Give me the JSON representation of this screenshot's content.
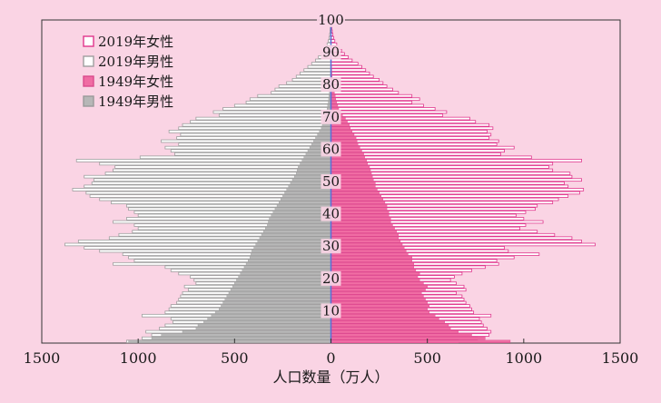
{
  "chart_data": {
    "type": "bar",
    "orientation": "horizontal",
    "layout": "population-pyramid",
    "xlabel": "人口数量（万人）",
    "x_ticks": [
      "1500",
      "1000",
      "500",
      "0",
      "500",
      "1000",
      "1500"
    ],
    "x_tick_values": [
      -1500,
      -1000,
      -500,
      0,
      500,
      1000,
      1500
    ],
    "xlim": [
      -1500,
      1500
    ],
    "ylim": [
      0,
      100
    ],
    "y_ticks": [
      10,
      20,
      30,
      40,
      50,
      60,
      70,
      80,
      90,
      100
    ],
    "grid": false,
    "legend_position": "top-left",
    "ages": [
      0,
      1,
      2,
      3,
      4,
      5,
      6,
      7,
      8,
      9,
      10,
      11,
      12,
      13,
      14,
      15,
      16,
      17,
      18,
      19,
      20,
      21,
      22,
      23,
      24,
      25,
      26,
      27,
      28,
      29,
      30,
      31,
      32,
      33,
      34,
      35,
      36,
      37,
      38,
      39,
      40,
      41,
      42,
      43,
      44,
      45,
      46,
      47,
      48,
      49,
      50,
      51,
      52,
      53,
      54,
      55,
      56,
      57,
      58,
      59,
      60,
      61,
      62,
      63,
      64,
      65,
      66,
      67,
      68,
      69,
      70,
      71,
      72,
      73,
      74,
      75,
      76,
      77,
      78,
      79,
      80,
      81,
      82,
      83,
      84,
      85,
      86,
      87,
      88,
      89,
      90,
      91,
      92,
      93,
      94,
      95,
      96,
      97,
      98,
      99,
      100
    ],
    "series": [
      {
        "name": "2019年女性",
        "side": "right",
        "style": "outline",
        "color": "#e0358c",
        "values": [
          660,
          760,
          820,
          830,
          810,
          790,
          780,
          770,
          830,
          740,
          730,
          720,
          700,
          690,
          680,
          650,
          700,
          690,
          650,
          620,
          640,
          680,
          730,
          800,
          870,
          860,
          950,
          1080,
          920,
          900,
          1370,
          1300,
          1250,
          1160,
          1070,
          980,
          1010,
          1100,
          1000,
          960,
          1010,
          1060,
          1070,
          1150,
          1180,
          1230,
          1290,
          1310,
          1230,
          1210,
          1300,
          1250,
          1240,
          1150,
          1130,
          1150,
          1300,
          1040,
          880,
          900,
          950,
          860,
          870,
          820,
          830,
          810,
          840,
          820,
          750,
          720,
          580,
          600,
          540,
          480,
          420,
          460,
          420,
          350,
          320,
          290,
          270,
          250,
          220,
          200,
          180,
          160,
          140,
          110,
          90,
          70,
          55,
          40,
          30,
          20,
          14,
          10,
          7,
          5,
          4,
          3,
          2
        ]
      },
      {
        "name": "2019年男性",
        "side": "left",
        "style": "outline",
        "color": "#9e9e9e",
        "values": [
          1060,
          980,
          930,
          960,
          890,
          860,
          820,
          830,
          980,
          860,
          840,
          830,
          800,
          790,
          780,
          770,
          740,
          760,
          700,
          710,
          730,
          790,
          830,
          860,
          1130,
          1020,
          1050,
          1080,
          1200,
          1280,
          1380,
          1310,
          1150,
          1100,
          1030,
          1000,
          1020,
          1130,
          1060,
          1000,
          1020,
          1050,
          1060,
          1140,
          1200,
          1250,
          1270,
          1340,
          1280,
          1240,
          1230,
          1280,
          1170,
          1130,
          1120,
          1200,
          1320,
          990,
          810,
          830,
          860,
          790,
          880,
          800,
          780,
          840,
          790,
          770,
          730,
          700,
          580,
          610,
          560,
          500,
          440,
          420,
          380,
          310,
          290,
          270,
          230,
          200,
          180,
          160,
          140,
          120,
          100,
          80,
          65,
          50,
          40,
          30,
          20,
          14,
          10,
          7,
          5,
          4,
          3,
          2,
          1
        ]
      },
      {
        "name": "1949年女性",
        "side": "right",
        "style": "filled",
        "color": "#f06ca3",
        "values": [
          930,
          800,
          730,
          660,
          620,
          610,
          590,
          560,
          540,
          510,
          500,
          510,
          500,
          490,
          480,
          470,
          490,
          500,
          480,
          460,
          450,
          460,
          440,
          430,
          430,
          420,
          420,
          400,
          390,
          380,
          370,
          360,
          350,
          350,
          340,
          330,
          320,
          310,
          310,
          300,
          300,
          290,
          290,
          280,
          270,
          260,
          250,
          240,
          230,
          230,
          220,
          215,
          210,
          205,
          200,
          190,
          185,
          175,
          170,
          160,
          150,
          140,
          135,
          130,
          120,
          110,
          100,
          95,
          85,
          75,
          60,
          50,
          40,
          35,
          30,
          25,
          22,
          18,
          15,
          12,
          10,
          8,
          6,
          5,
          4,
          3,
          2,
          2,
          1,
          1,
          1,
          0,
          0,
          0,
          0,
          0,
          0,
          0,
          0,
          0,
          0
        ]
      },
      {
        "name": "1949年男性",
        "side": "left",
        "style": "filled",
        "color": "#b7b7b7",
        "values": [
          1050,
          930,
          880,
          770,
          700,
          690,
          660,
          640,
          620,
          600,
          580,
          570,
          560,
          550,
          540,
          530,
          520,
          510,
          500,
          490,
          480,
          470,
          460,
          450,
          440,
          430,
          420,
          415,
          410,
          400,
          390,
          380,
          370,
          360,
          350,
          340,
          330,
          325,
          320,
          310,
          300,
          290,
          280,
          270,
          260,
          250,
          240,
          230,
          220,
          210,
          200,
          190,
          180,
          175,
          170,
          160,
          150,
          140,
          130,
          120,
          110,
          100,
          90,
          80,
          70,
          60,
          50,
          45,
          40,
          35,
          30,
          25,
          20,
          17,
          14,
          12,
          10,
          8,
          6,
          5,
          4,
          3,
          2,
          2,
          1,
          1,
          1,
          0,
          0,
          0,
          0,
          0,
          0,
          0,
          0,
          0,
          0,
          0,
          0,
          0,
          0
        ]
      }
    ]
  }
}
